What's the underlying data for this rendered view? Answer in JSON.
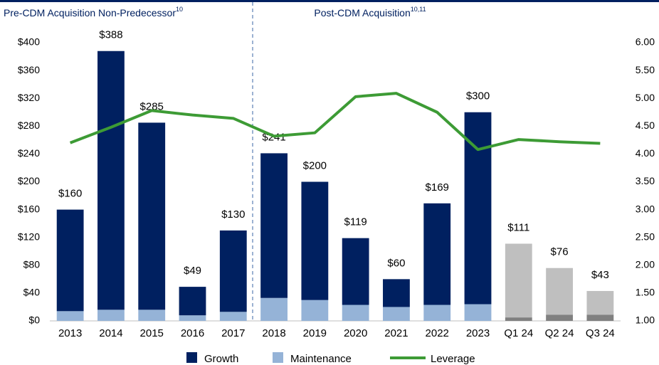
{
  "chart_data": {
    "type": "bar",
    "headers": [
      {
        "text": "Pre-CDM Acquisition Non-Predecessor",
        "sup": "10"
      },
      {
        "text": "Post-CDM Acquisition",
        "sup": "10,11"
      }
    ],
    "categories": [
      "2013",
      "2014",
      "2015",
      "2016",
      "2017",
      "2018",
      "2019",
      "2020",
      "2021",
      "2022",
      "2023",
      "Q1 24",
      "Q2 24",
      "Q3 24"
    ],
    "series": [
      {
        "name": "Maintenance",
        "color": "#95b3d7",
        "stack": true,
        "colors": [
          "#95b3d7",
          "#95b3d7",
          "#95b3d7",
          "#95b3d7",
          "#95b3d7",
          "#95b3d7",
          "#95b3d7",
          "#95b3d7",
          "#95b3d7",
          "#95b3d7",
          "#95b3d7",
          "#808080",
          "#808080",
          "#808080"
        ],
        "values": [
          14,
          16,
          16,
          8,
          13,
          33,
          30,
          23,
          20,
          23,
          24,
          5,
          9,
          9
        ]
      },
      {
        "name": "Growth",
        "color": "#002060",
        "stack": true,
        "colors": [
          "#002060",
          "#002060",
          "#002060",
          "#002060",
          "#002060",
          "#002060",
          "#002060",
          "#002060",
          "#002060",
          "#002060",
          "#002060",
          "#bfbfbf",
          "#bfbfbf",
          "#bfbfbf"
        ],
        "values": [
          146,
          372,
          269,
          41,
          117,
          208,
          170,
          96,
          40,
          146,
          276,
          106,
          67,
          34
        ]
      },
      {
        "name": "Leverage",
        "color": "#3d9b35",
        "type": "line",
        "axis": "y2",
        "values": [
          4.2,
          4.48,
          4.78,
          4.7,
          4.64,
          4.32,
          4.38,
          5.03,
          5.09,
          4.75,
          4.08,
          4.26,
          4.22,
          4.19
        ]
      }
    ],
    "totals": {
      "values": [
        160,
        388,
        285,
        49,
        130,
        241,
        200,
        119,
        60,
        169,
        300,
        111,
        76,
        43
      ],
      "value_labels": [
        "$160",
        "$388",
        "$285",
        "$49",
        "$130",
        "$241",
        "$200",
        "$119",
        "$60",
        "$169",
        "$300",
        "$111",
        "$76",
        "$43"
      ]
    },
    "legend_order": [
      1,
      0,
      2
    ],
    "ylim": [
      0,
      400
    ],
    "yticks": [
      {
        "value": 0,
        "label": "$0"
      },
      {
        "value": 40,
        "label": "$40"
      },
      {
        "value": 80,
        "label": "$80"
      },
      {
        "value": 120,
        "label": "$120"
      },
      {
        "value": 160,
        "label": "$160"
      },
      {
        "value": 200,
        "label": "$200"
      },
      {
        "value": 240,
        "label": "$240"
      },
      {
        "value": 280,
        "label": "$280"
      },
      {
        "value": 320,
        "label": "$320"
      },
      {
        "value": 360,
        "label": "$360"
      },
      {
        "value": 400,
        "label": "$400"
      }
    ],
    "y2lim": [
      1,
      6
    ],
    "y2ticks": [
      {
        "value": 1,
        "label": "1.00"
      },
      {
        "value": 1.5,
        "label": "1.50"
      },
      {
        "value": 2,
        "label": "2.00"
      },
      {
        "value": 2.5,
        "label": "2.50"
      },
      {
        "value": 3,
        "label": "3.00"
      },
      {
        "value": 3.5,
        "label": "3.50"
      },
      {
        "value": 4,
        "label": "4.00"
      },
      {
        "value": 4.5,
        "label": "4.50"
      },
      {
        "value": 5,
        "label": "5.00"
      },
      {
        "value": 5.5,
        "label": "5.50"
      },
      {
        "value": 6,
        "label": "6.00"
      }
    ],
    "grid": false,
    "legend": "bottom"
  }
}
